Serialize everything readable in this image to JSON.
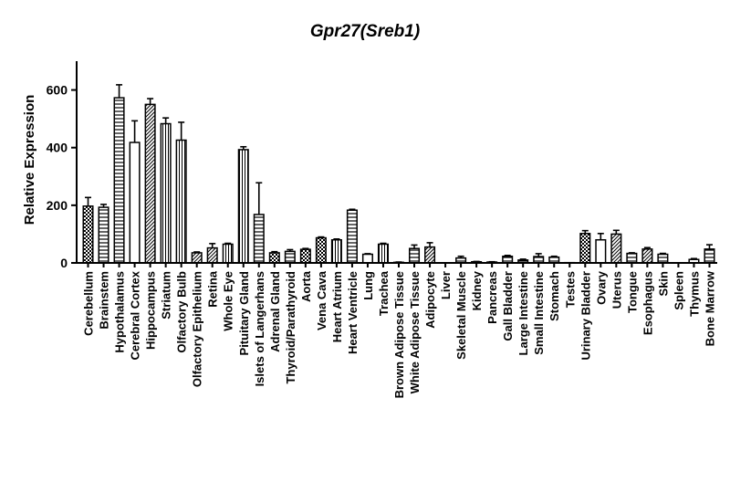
{
  "chart_data": {
    "type": "bar",
    "title": "Gpr27(Sreb1)",
    "xlabel": "",
    "ylabel": "Relative Expression",
    "ylim": [
      0,
      700
    ],
    "yticks": [
      0,
      200,
      400,
      600
    ],
    "grid": false,
    "legend": "none",
    "categories": [
      "Cerebellum",
      "Brainstem",
      "Hypothalamus",
      "Cerebral Cortex",
      "Hippocampus",
      "Striatum",
      "Olfactory Bulb",
      "Olfactory Epithelium",
      "Retina",
      "Whole Eye",
      "Pituitary Gland",
      "Islets of Langerhans",
      "Adrenal Gland",
      "Thyroid/Parathyroid",
      "Aorta",
      "Vena Cava",
      "Heart Atrium",
      "Heart Ventricle",
      "Lung",
      "Trachea",
      "Brown Adipose Tissue",
      "White Adipose Tissue",
      "Adipocyte",
      "Liver",
      "Skeletal Muscle",
      "Kidney",
      "Pancreas",
      "Gall Bladder",
      "Large Intestine",
      "Small Intestine",
      "Stomach",
      "Testes",
      "Urinary Bladder",
      "Ovary",
      "Uterus",
      "Tongue",
      "Esophagus",
      "Skin",
      "Spleen",
      "Thymus",
      "Bone Marrow"
    ],
    "values": [
      197,
      193,
      573,
      418,
      550,
      483,
      426,
      35,
      52,
      65,
      393,
      168,
      35,
      40,
      47,
      87,
      80,
      183,
      30,
      65,
      2,
      50,
      55,
      0,
      17,
      4,
      3,
      23,
      10,
      22,
      20,
      1,
      102,
      80,
      100,
      33,
      48,
      30,
      0,
      12,
      48
    ],
    "errors": [
      30,
      10,
      45,
      75,
      20,
      20,
      62,
      3,
      15,
      3,
      10,
      110,
      4,
      6,
      3,
      3,
      3,
      3,
      2,
      3,
      1,
      12,
      15,
      0,
      6,
      1,
      1,
      3,
      3,
      10,
      3,
      0,
      10,
      22,
      13,
      2,
      5,
      3,
      0,
      3,
      15
    ],
    "patterns": [
      "checker",
      "hlines",
      "hlines",
      "blank",
      "diag",
      "vlines",
      "vlines",
      "diag",
      "diag",
      "vlines",
      "vlines",
      "hlines",
      "checker",
      "hlines",
      "checker",
      "checker",
      "vlines",
      "hlines",
      "blank",
      "vlines",
      "blank",
      "hlines",
      "diag",
      "blank",
      "hlines",
      "blank",
      "blank",
      "hlines",
      "hlines",
      "hlines",
      "hlines",
      "blank",
      "checker",
      "blank",
      "diag",
      "hlines",
      "diag",
      "hlines",
      "blank",
      "blank",
      "hlines"
    ]
  }
}
